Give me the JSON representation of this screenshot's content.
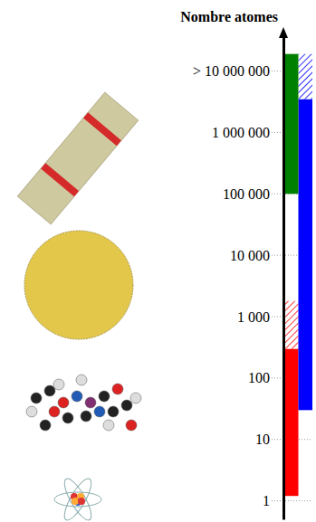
{
  "chart_data": {
    "type": "bar",
    "y_label": "Nombre atomes",
    "log": "y",
    "grid": true,
    "stacked": false,
    "tick_labels": "y",
    "categories": [
      null,
      null
    ],
    "ylim": [
      0.5,
      37000000
    ],
    "yticks": [
      1,
      10,
      100,
      {
        "value": 1000,
        "label": "1 000"
      },
      {
        "value": 10000,
        "label": "10 000"
      },
      {
        "value": 100000,
        "label": "100 000"
      },
      {
        "value": 1000000,
        "label": "1 000 000"
      },
      {
        "value": 10000000,
        "label": "> 10 000 000"
      }
    ],
    "series": [
      {
        "color": "#ff0000",
        "low": [
          1.2,
          null
        ],
        "high": [
          300,
          null
        ]
      },
      {
        "color": "#ff0000",
        "line_style": "hatched",
        "low": [
          300,
          null
        ],
        "high": [
          1800,
          null
        ]
      },
      {
        "color": "#0000ff",
        "low": [
          null,
          30
        ],
        "high": [
          null,
          3500000
        ]
      },
      {
        "color": "#0000ff",
        "line_style": "hatched",
        "low": [
          null,
          3500000
        ],
        "high": [
          null,
          19000000
        ]
      },
      {
        "color": "#008000",
        "low": [
          100000,
          null
        ],
        "high": [
          19000000,
          null
        ]
      }
    ]
  }
}
